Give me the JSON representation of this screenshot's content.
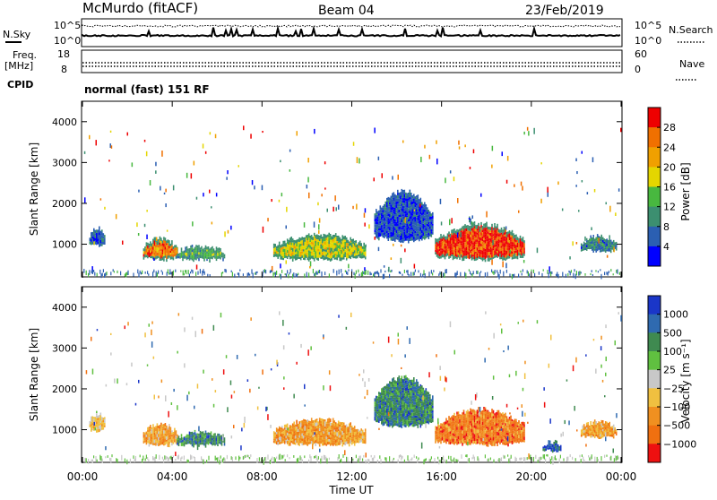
{
  "header": {
    "station": "McMurdo (fitACF)",
    "beam": "Beam 04",
    "date": "23/Feb/2019",
    "mode": "normal (fast) 151 RF"
  },
  "top_panels": {
    "noise": {
      "left_label": "N.Sky",
      "right_label": "N.Search",
      "left_ticks": [
        "10^5",
        "10^0"
      ],
      "right_ticks": [
        "10^5",
        "10^0"
      ]
    },
    "freq": {
      "left_label": "Freq.",
      "left_unit": "[MHz]",
      "cpid_label": "CPID",
      "right_label": "Nave",
      "left_ticks": [
        "18",
        "8"
      ],
      "right_ticks": [
        "60",
        "0"
      ]
    }
  },
  "chart_data": [
    {
      "type": "heatmap",
      "name": "power",
      "ylabel": "Slant Range [km]",
      "ylim": [
        200,
        4500
      ],
      "yticks": [
        "1000",
        "2000",
        "3000",
        "4000"
      ],
      "xlabel": "Time UT",
      "xticks": [
        "00:00",
        "04:00",
        "08:00",
        "12:00",
        "16:00",
        "20:00",
        "00:00"
      ],
      "xlim_hours": [
        0,
        24
      ],
      "colorbar": {
        "label": "Power [dB]",
        "ticks": [
          "4",
          "8",
          "12",
          "16",
          "20",
          "24",
          "28"
        ],
        "colors": [
          "#0000ff",
          "#2b5fb2",
          "#3c8f70",
          "#48b83f",
          "#e4d600",
          "#f0a000",
          "#f07000",
          "#ee0000"
        ]
      },
      "echo_regions": [
        {
          "t_start": 0.3,
          "t_end": 1.0,
          "r_low": 1000,
          "r_high": 1400,
          "level": 1
        },
        {
          "t_start": 2.7,
          "t_end": 4.2,
          "r_low": 650,
          "r_high": 1150,
          "level": 6
        },
        {
          "t_start": 4.2,
          "t_end": 6.3,
          "r_low": 650,
          "r_high": 950,
          "level": 3
        },
        {
          "t_start": 8.5,
          "t_end": 12.6,
          "r_low": 650,
          "r_high": 1250,
          "level": 4
        },
        {
          "t_start": 13.0,
          "t_end": 15.6,
          "r_low": 1100,
          "r_high": 2300,
          "level": 1
        },
        {
          "t_start": 15.7,
          "t_end": 19.7,
          "r_low": 650,
          "r_high": 1500,
          "level": 7
        },
        {
          "t_start": 22.2,
          "t_end": 23.8,
          "r_low": 850,
          "r_high": 1200,
          "level": 2
        }
      ]
    },
    {
      "type": "heatmap",
      "name": "velocity",
      "ylabel": "Slant Range [km]",
      "ylim": [
        200,
        4500
      ],
      "yticks": [
        "1000",
        "2000",
        "3000",
        "4000"
      ],
      "xlabel": "Time UT",
      "xticks": [
        "00:00",
        "04:00",
        "08:00",
        "12:00",
        "16:00",
        "20:00",
        "00:00"
      ],
      "xlim_hours": [
        0,
        24
      ],
      "colorbar": {
        "label": "Velocity [m s⁻¹]",
        "ticks": [
          "1000",
          "500",
          "100",
          "25",
          "−25",
          "−100",
          "−500",
          "−1000"
        ],
        "colors": [
          "#1a36c8",
          "#2f6ab0",
          "#3f8a50",
          "#60c040",
          "#c8c8c8",
          "#f0c040",
          "#f09020",
          "#f07010",
          "#ee1010"
        ]
      },
      "echo_regions": [
        {
          "t_start": 0.3,
          "t_end": 1.0,
          "r_low": 1000,
          "r_high": 1400,
          "level": 5
        },
        {
          "t_start": 2.7,
          "t_end": 4.2,
          "r_low": 650,
          "r_high": 1150,
          "level": 6
        },
        {
          "t_start": 4.2,
          "t_end": 6.3,
          "r_low": 650,
          "r_high": 950,
          "level": 2
        },
        {
          "t_start": 8.5,
          "t_end": 12.6,
          "r_low": 650,
          "r_high": 1250,
          "level": 6
        },
        {
          "t_start": 13.0,
          "t_end": 15.6,
          "r_low": 1100,
          "r_high": 2300,
          "level": 2
        },
        {
          "t_start": 15.7,
          "t_end": 19.7,
          "r_low": 650,
          "r_high": 1500,
          "level": 7
        },
        {
          "t_start": 20.5,
          "t_end": 21.3,
          "r_low": 500,
          "r_high": 700,
          "level": 1
        },
        {
          "t_start": 22.2,
          "t_end": 23.8,
          "r_low": 850,
          "r_high": 1200,
          "level": 6
        }
      ]
    }
  ]
}
